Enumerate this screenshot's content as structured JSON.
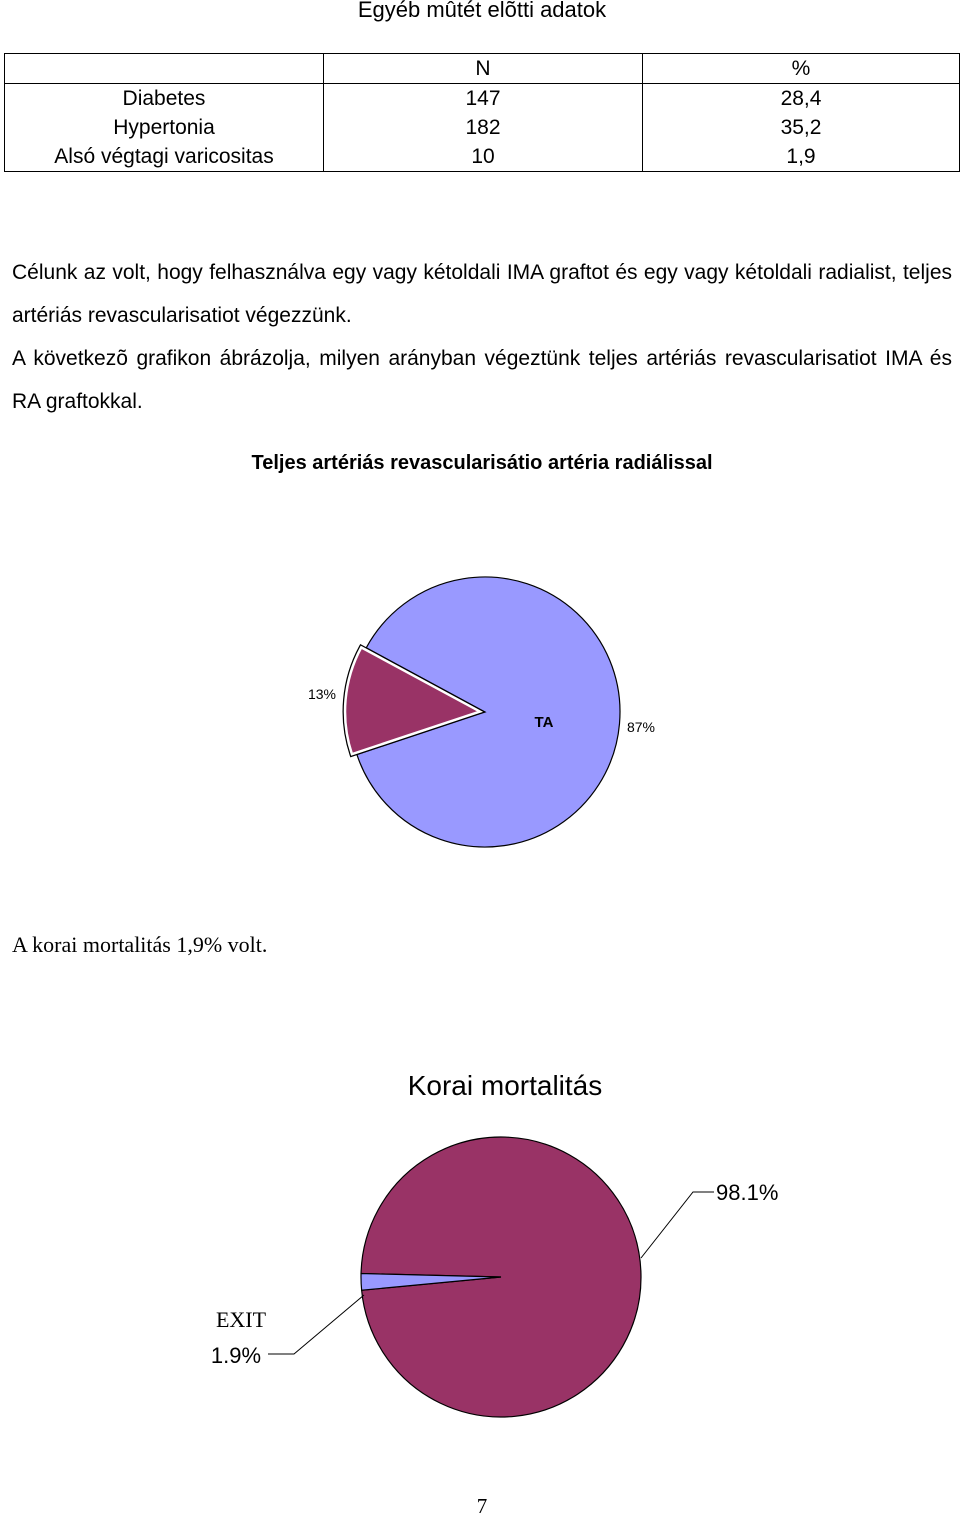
{
  "table": {
    "title": "Egyéb mûtét elõtti adatok",
    "headers": [
      "",
      "N",
      "%"
    ],
    "rows": [
      {
        "label": "Diabetes",
        "n": "147",
        "pct": "28,4"
      },
      {
        "label": "Hypertonia",
        "n": "182",
        "pct": "35,2"
      },
      {
        "label": "Alsó végtagi varicositas",
        "n": "10",
        "pct": "1,9"
      }
    ]
  },
  "paragraphs": {
    "p1": "Célunk az volt, hogy felhasználva egy vagy kétoldali IMA graftot és egy vagy kétoldali radialist, teljes artériás revascularisatiot végezzünk.",
    "p2": "A következõ grafikon ábrázolja, milyen arányban végeztünk teljes artériás revascularisatiot IMA és RA graftokkal.",
    "mortality": "A korai mortalitás 1,9% volt."
  },
  "page_number": "7",
  "chart_data": [
    {
      "type": "pie",
      "title": "Teljes artériás revascularisátio artéria radiálissal",
      "slices": [
        {
          "label": "",
          "value": 13,
          "value_label": "13%",
          "color": "#993366",
          "exploded": true
        },
        {
          "label": "TA",
          "value": 87,
          "value_label": "87%",
          "color": "#9999ff",
          "exploded": false
        }
      ]
    },
    {
      "type": "pie",
      "title": "Korai mortalitás",
      "slices": [
        {
          "label": "",
          "value": 98.1,
          "value_label": "98.1%",
          "color": "#993366"
        },
        {
          "label": "EXIT",
          "value": 1.9,
          "value_label": "1.9%",
          "color": "#9999ff"
        }
      ]
    }
  ]
}
